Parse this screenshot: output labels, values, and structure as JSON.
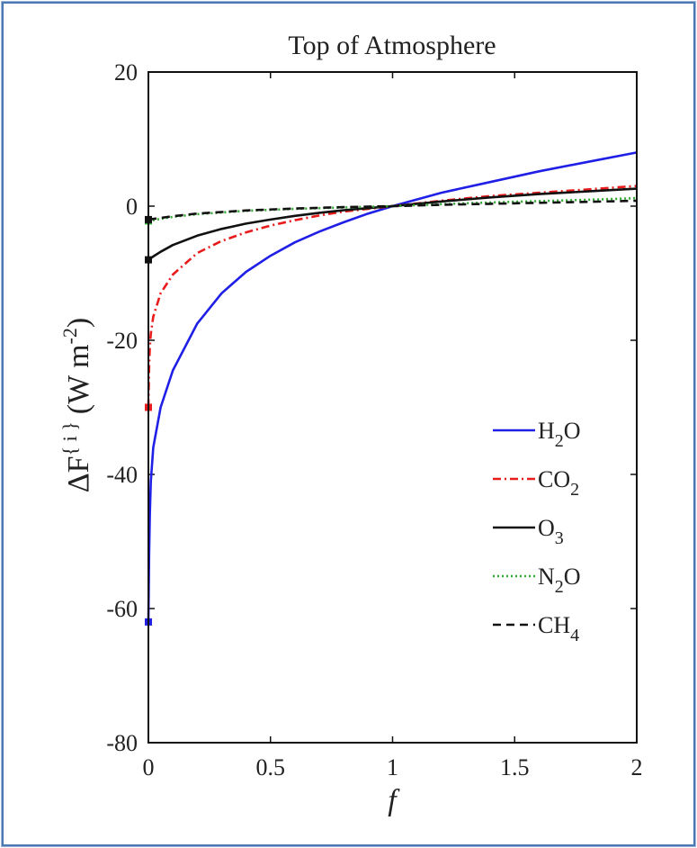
{
  "chart_data": {
    "type": "line",
    "title": "Top of Atmosphere",
    "xlabel": "f",
    "ylabel": "ΔF{ i } (W m-2)",
    "ylabel_parts": {
      "delta": "Δ",
      "F": "F",
      "sup_i": "{ i }",
      "units_open": "(W m",
      "units_exp": "-2",
      "units_close": ")"
    },
    "xlim": [
      0,
      2
    ],
    "ylim": [
      -80,
      20
    ],
    "xticks": [
      0,
      0.5,
      1,
      1.5,
      2
    ],
    "xtick_labels": [
      "0",
      "0.5",
      "1",
      "1.5",
      "2"
    ],
    "yticks": [
      20,
      0,
      -20,
      -40,
      -60,
      -80
    ],
    "ytick_labels": [
      "20",
      "0",
      "-20",
      "-40",
      "-60",
      "-80"
    ],
    "grid": false,
    "legend_position": "lower-right",
    "series": [
      {
        "name": "H2O",
        "legend_base": "H",
        "legend_sub": "2",
        "legend_tail": "O",
        "color": "#1f1fe6",
        "dash": "solid",
        "start_marker": {
          "x": 0,
          "y": -62
        },
        "x": [
          0,
          0.003,
          0.006,
          0.01,
          0.02,
          0.05,
          0.1,
          0.2,
          0.3,
          0.4,
          0.5,
          0.6,
          0.7,
          0.8,
          0.9,
          1.0,
          1.2,
          1.4,
          1.6,
          1.8,
          2.0
        ],
        "y": [
          -62,
          -52,
          -46,
          -41,
          -36,
          -30,
          -24.5,
          -17.5,
          -13,
          -9.8,
          -7.4,
          -5.4,
          -3.8,
          -2.4,
          -1.1,
          0,
          2,
          3.6,
          5.2,
          6.6,
          8
        ]
      },
      {
        "name": "CO2",
        "legend_base": "CO",
        "legend_sub": "2",
        "legend_tail": "",
        "color": "#e81c1c",
        "dash": "dashdot",
        "start_marker": {
          "x": 0,
          "y": -30
        },
        "x": [
          0,
          0.003,
          0.006,
          0.01,
          0.02,
          0.05,
          0.1,
          0.2,
          0.3,
          0.4,
          0.5,
          0.6,
          0.7,
          0.8,
          0.9,
          1.0,
          1.2,
          1.4,
          1.6,
          1.8,
          2.0
        ],
        "y": [
          -30,
          -24,
          -21,
          -19,
          -16.5,
          -13,
          -10.2,
          -7,
          -5.2,
          -3.9,
          -2.9,
          -2.1,
          -1.4,
          -0.8,
          -0.4,
          0,
          0.8,
          1.5,
          2,
          2.5,
          3
        ]
      },
      {
        "name": "O3",
        "legend_base": "O",
        "legend_sub": "3",
        "legend_tail": "",
        "color": "#111111",
        "dash": "solid",
        "start_marker": {
          "x": 0,
          "y": -8
        },
        "x": [
          0,
          0.02,
          0.05,
          0.1,
          0.2,
          0.3,
          0.4,
          0.5,
          0.6,
          0.7,
          0.8,
          0.9,
          1.0,
          1.2,
          1.4,
          1.6,
          1.8,
          2.0
        ],
        "y": [
          -8,
          -7.5,
          -6.8,
          -5.8,
          -4.4,
          -3.4,
          -2.6,
          -2,
          -1.45,
          -1,
          -0.6,
          -0.3,
          0,
          0.7,
          1.3,
          1.8,
          2.2,
          2.6
        ]
      },
      {
        "name": "N2O",
        "legend_base": "N",
        "legend_sub": "2",
        "legend_tail": "O",
        "color": "#2eaa2e",
        "dash": "dotted",
        "start_marker": {
          "x": 0,
          "y": -2.2
        },
        "x": [
          0,
          0.1,
          0.2,
          0.4,
          0.6,
          0.8,
          1.0,
          1.2,
          1.4,
          1.6,
          1.8,
          2.0
        ],
        "y": [
          -2.2,
          -1.6,
          -1.2,
          -0.7,
          -0.4,
          -0.2,
          0,
          0.3,
          0.55,
          0.75,
          0.95,
          1.2
        ]
      },
      {
        "name": "CH4",
        "legend_base": "CH",
        "legend_sub": "4",
        "legend_tail": "",
        "color": "#111111",
        "dash": "dashed",
        "start_marker": {
          "x": 0,
          "y": -2
        },
        "x": [
          0,
          0.1,
          0.2,
          0.4,
          0.6,
          0.8,
          1.0,
          1.2,
          1.4,
          1.6,
          1.8,
          2.0
        ],
        "y": [
          -2,
          -1.5,
          -1.1,
          -0.65,
          -0.35,
          -0.15,
          0,
          0.2,
          0.35,
          0.5,
          0.65,
          0.8
        ]
      }
    ]
  }
}
